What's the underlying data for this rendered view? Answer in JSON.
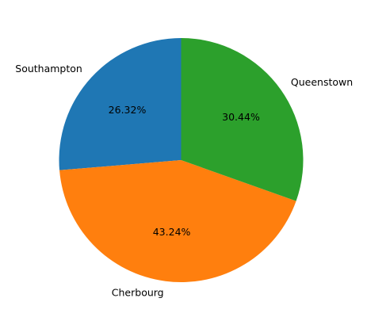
{
  "chart_data": {
    "type": "pie",
    "title": "",
    "start_angle_deg": 90,
    "direction": "counterclockwise",
    "slices": [
      {
        "label": "Southampton",
        "value": 26.32,
        "pct_label": "26.32%",
        "color": "#1f77b4"
      },
      {
        "label": "Cherbourg",
        "value": 43.24,
        "pct_label": "43.24%",
        "color": "#ff7f0e"
      },
      {
        "label": "Queenstown",
        "value": 30.44,
        "pct_label": "30.44%",
        "color": "#2ca02c"
      }
    ]
  }
}
